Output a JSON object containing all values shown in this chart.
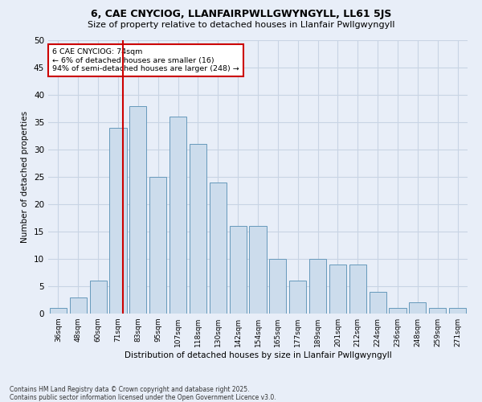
{
  "title1": "6, CAE CNYCIOG, LLANFAIRPWLLGWYNGYLL, LL61 5JS",
  "title2": "Size of property relative to detached houses in Llanfair Pwllgwyngyll",
  "xlabel": "Distribution of detached houses by size in Llanfair Pwllgwyngyll",
  "ylabel": "Number of detached properties",
  "categories": [
    "36sqm",
    "48sqm",
    "60sqm",
    "71sqm",
    "83sqm",
    "95sqm",
    "107sqm",
    "118sqm",
    "130sqm",
    "142sqm",
    "154sqm",
    "165sqm",
    "177sqm",
    "189sqm",
    "201sqm",
    "212sqm",
    "224sqm",
    "236sqm",
    "248sqm",
    "259sqm",
    "271sqm"
  ],
  "values": [
    1,
    3,
    6,
    34,
    38,
    25,
    36,
    31,
    24,
    16,
    16,
    10,
    6,
    10,
    9,
    9,
    4,
    1,
    2,
    1,
    1
  ],
  "bar_color": "#ccdcec",
  "bar_edge_color": "#6699bb",
  "vline_color": "#cc0000",
  "annotation_text": "6 CAE CNYCIOG: 74sqm\n← 6% of detached houses are smaller (16)\n94% of semi-detached houses are larger (248) →",
  "annotation_box_color": "#ffffff",
  "annotation_box_edge": "#cc0000",
  "grid_color": "#c8d4e4",
  "bg_color": "#e8eef8",
  "footer": "Contains HM Land Registry data © Crown copyright and database right 2025.\nContains public sector information licensed under the Open Government Licence v3.0.",
  "ylim": [
    0,
    50
  ],
  "title1_fontsize": 9,
  "title2_fontsize": 8
}
